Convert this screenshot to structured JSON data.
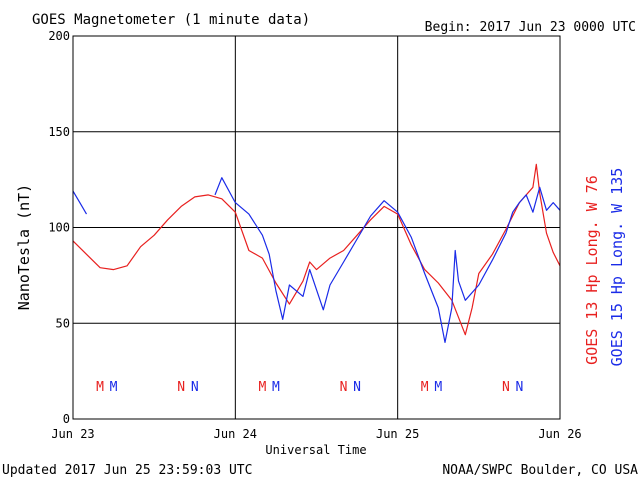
{
  "chart_data": {
    "type": "line",
    "title": "GOES Magnetometer (1 minute data)",
    "begin_label": "Begin:  2017 Jun 23 0000 UTC",
    "xlabel": "Universal Time",
    "ylabel": "NanoTesla (nT)",
    "x_range": [
      "2017-06-23 00:00",
      "2017-06-26 00:00"
    ],
    "x_ticks": [
      "Jun 23",
      "Jun 24",
      "Jun 25",
      "Jun 26"
    ],
    "ylim": [
      0,
      200
    ],
    "y_ticks": [
      "0",
      "50",
      "100",
      "150",
      "200"
    ],
    "grid": true,
    "legend_position": "right-vertical",
    "footer_left": "Updated 2017 Jun 25 23:59:03 UTC",
    "footer_right": "NOAA/SWPC Boulder, CO USA",
    "series": [
      {
        "name": "GOES 13 Hp",
        "legend_suffix": "Long. W 76",
        "color": "#e8201f",
        "points": [
          [
            "2017-06-23 00:00",
            93
          ],
          [
            "2017-06-23 02:00",
            86
          ],
          [
            "2017-06-23 04:00",
            79
          ],
          [
            "2017-06-23 06:00",
            78
          ],
          [
            "2017-06-23 08:00",
            80
          ],
          [
            "2017-06-23 10:00",
            90
          ],
          [
            "2017-06-23 12:00",
            96
          ],
          [
            "2017-06-23 14:00",
            104
          ],
          [
            "2017-06-23 16:00",
            111
          ],
          [
            "2017-06-23 18:00",
            116
          ],
          [
            "2017-06-23 20:00",
            117
          ],
          [
            "2017-06-23 22:00",
            115
          ],
          [
            "2017-06-24 00:00",
            108
          ],
          [
            "2017-06-24 02:00",
            88
          ],
          [
            "2017-06-24 04:00",
            84
          ],
          [
            "2017-06-24 06:00",
            71
          ],
          [
            "2017-06-24 08:00",
            60
          ],
          [
            "2017-06-24 10:00",
            72
          ],
          [
            "2017-06-24 11:00",
            82
          ],
          [
            "2017-06-24 12:00",
            78
          ],
          [
            "2017-06-24 14:00",
            84
          ],
          [
            "2017-06-24 16:00",
            88
          ],
          [
            "2017-06-24 18:00",
            96
          ],
          [
            "2017-06-24 20:00",
            104
          ],
          [
            "2017-06-24 22:00",
            111
          ],
          [
            "2017-06-25 00:00",
            107
          ],
          [
            "2017-06-25 02:00",
            91
          ],
          [
            "2017-06-25 04:00",
            78
          ],
          [
            "2017-06-25 06:00",
            71
          ],
          [
            "2017-06-25 08:00",
            62
          ],
          [
            "2017-06-25 10:00",
            44
          ],
          [
            "2017-06-25 11:00",
            58
          ],
          [
            "2017-06-25 12:00",
            76
          ],
          [
            "2017-06-25 14:00",
            86
          ],
          [
            "2017-06-25 16:00",
            99
          ],
          [
            "2017-06-25 18:00",
            113
          ],
          [
            "2017-06-25 20:00",
            121
          ],
          [
            "2017-06-25 20:30",
            133
          ],
          [
            "2017-06-25 21:00",
            118
          ],
          [
            "2017-06-25 22:00",
            97
          ],
          [
            "2017-06-25 23:00",
            87
          ],
          [
            "2017-06-26 00:00",
            80
          ]
        ],
        "markers": [
          {
            "label": "M",
            "time": "2017-06-23 04:00"
          },
          {
            "label": "N",
            "time": "2017-06-23 16:00"
          },
          {
            "label": "M",
            "time": "2017-06-24 04:00"
          },
          {
            "label": "N",
            "time": "2017-06-24 16:00"
          },
          {
            "label": "M",
            "time": "2017-06-25 04:00"
          },
          {
            "label": "N",
            "time": "2017-06-25 16:00"
          }
        ]
      },
      {
        "name": "GOES 15 Hp",
        "legend_suffix": "Long. W 135",
        "color": "#1a2be8",
        "points": [
          [
            "2017-06-23 00:00",
            119
          ],
          [
            "2017-06-23 01:00",
            113
          ],
          [
            "2017-06-23 02:00",
            107
          ],
          [
            null,
            null
          ],
          [
            "2017-06-23 21:00",
            117
          ],
          [
            "2017-06-23 22:00",
            126
          ],
          [
            "2017-06-24 00:00",
            113
          ],
          [
            "2017-06-24 02:00",
            107
          ],
          [
            "2017-06-24 04:00",
            96
          ],
          [
            "2017-06-24 05:00",
            86
          ],
          [
            "2017-06-24 06:00",
            67
          ],
          [
            "2017-06-24 07:00",
            52
          ],
          [
            "2017-06-24 08:00",
            70
          ],
          [
            "2017-06-24 10:00",
            64
          ],
          [
            "2017-06-24 11:00",
            78
          ],
          [
            "2017-06-24 13:00",
            57
          ],
          [
            "2017-06-24 14:00",
            70
          ],
          [
            "2017-06-24 16:00",
            82
          ],
          [
            "2017-06-24 18:00",
            94
          ],
          [
            "2017-06-24 20:00",
            106
          ],
          [
            "2017-06-24 22:00",
            114
          ],
          [
            "2017-06-25 00:00",
            108
          ],
          [
            "2017-06-25 02:00",
            95
          ],
          [
            "2017-06-25 04:00",
            76
          ],
          [
            "2017-06-25 06:00",
            58
          ],
          [
            "2017-06-25 07:00",
            40
          ],
          [
            "2017-06-25 08:00",
            58
          ],
          [
            "2017-06-25 08:30",
            88
          ],
          [
            "2017-06-25 09:00",
            72
          ],
          [
            "2017-06-25 10:00",
            62
          ],
          [
            "2017-06-25 12:00",
            70
          ],
          [
            "2017-06-25 14:00",
            83
          ],
          [
            "2017-06-25 16:00",
            97
          ],
          [
            "2017-06-25 17:00",
            108
          ],
          [
            "2017-06-25 18:00",
            113
          ],
          [
            "2017-06-25 19:00",
            117
          ],
          [
            "2017-06-25 20:00",
            108
          ],
          [
            "2017-06-25 21:00",
            121
          ],
          [
            "2017-06-25 22:00",
            109
          ],
          [
            "2017-06-25 23:00",
            113
          ],
          [
            "2017-06-26 00:00",
            109
          ]
        ],
        "markers": [
          {
            "label": "M",
            "time": "2017-06-23 06:00"
          },
          {
            "label": "N",
            "time": "2017-06-23 18:00"
          },
          {
            "label": "M",
            "time": "2017-06-24 06:00"
          },
          {
            "label": "N",
            "time": "2017-06-24 18:00"
          },
          {
            "label": "M",
            "time": "2017-06-25 06:00"
          },
          {
            "label": "N",
            "time": "2017-06-25 18:00"
          }
        ]
      }
    ]
  }
}
